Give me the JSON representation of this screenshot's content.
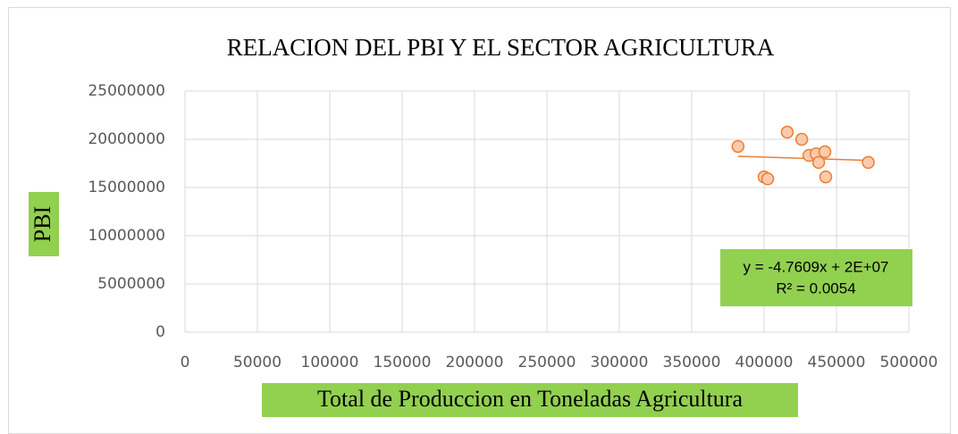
{
  "chart_data": {
    "type": "scatter",
    "title": "RELACION DEL PBI Y EL SECTOR AGRICULTURA",
    "x_label": "Total de Produccion en Toneladas Agricultura",
    "y_label": "PBI",
    "x": [
      382000,
      416000,
      426000,
      400000,
      402500,
      431000,
      436000,
      437700,
      442000,
      442600,
      472000
    ],
    "series": [
      {
        "name": "PBI",
        "color": "#ed7d31",
        "values": [
          19260000,
          20740000,
          20000000,
          16100000,
          15900000,
          18330000,
          18500000,
          17600000,
          18700000,
          16100000,
          17600000
        ]
      }
    ],
    "trendline": {
      "slope": -4.7609,
      "intercept": 20060000,
      "equation": "y = -4.7609x + 2E+07",
      "r2": "R² = 0.0054"
    },
    "xlim": [
      0,
      500000
    ],
    "xticks": [
      0,
      50000,
      100000,
      150000,
      200000,
      250000,
      300000,
      350000,
      400000,
      450000,
      500000
    ],
    "ylim": [
      0,
      25000000
    ],
    "yticks": [
      0,
      5000000,
      10000000,
      15000000,
      20000000,
      25000000
    ],
    "grid": true
  }
}
